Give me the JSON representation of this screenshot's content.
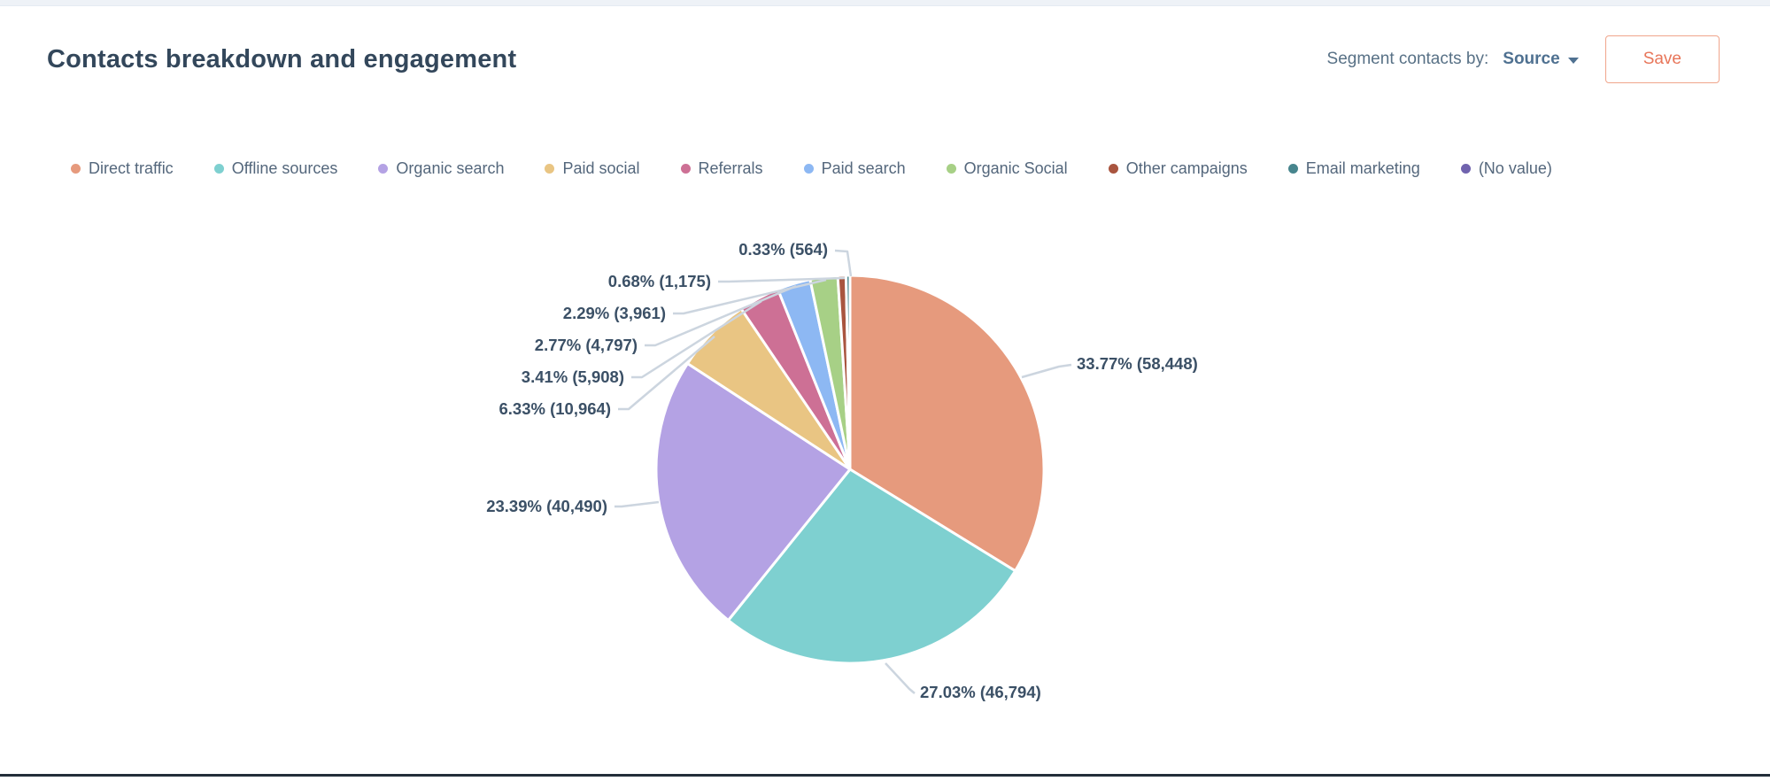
{
  "header": {
    "title": "Contacts breakdown and engagement",
    "segment_label": "Segment contacts by:",
    "segment_value": "Source",
    "save_label": "Save"
  },
  "colors": {
    "accent_button_text": "#e8765a",
    "accent_button_border": "#f0a58c",
    "title_text": "#33475b",
    "muted_text": "#587186",
    "dropdown_text": "#4f7191",
    "leader_line": "#ccd5df",
    "top_strip": "#eef2f7",
    "bottom_bar": "#232e3a"
  },
  "chart_data": {
    "type": "pie",
    "title": "Contacts breakdown and engagement",
    "legend_position": "top",
    "start_angle_deg": 0,
    "direction": "clockwise",
    "slices": [
      {
        "name": "Direct traffic",
        "percent": 33.77,
        "value": 58448,
        "label": "33.77% (58,448)",
        "color": "#e69a7d"
      },
      {
        "name": "Offline sources",
        "percent": 27.03,
        "value": 46794,
        "label": "27.03% (46,794)",
        "color": "#7ed0d0"
      },
      {
        "name": "Organic search",
        "percent": 23.39,
        "value": 40490,
        "label": "23.39% (40,490)",
        "color": "#b4a2e4"
      },
      {
        "name": "Paid social",
        "percent": 6.33,
        "value": 10964,
        "label": "6.33% (10,964)",
        "color": "#e9c583"
      },
      {
        "name": "Referrals",
        "percent": 3.41,
        "value": 5908,
        "label": "3.41% (5,908)",
        "color": "#cd7095"
      },
      {
        "name": "Paid search",
        "percent": 2.77,
        "value": 4797,
        "label": "2.77% (4,797)",
        "color": "#8db8f3"
      },
      {
        "name": "Organic Social",
        "percent": 2.29,
        "value": 3961,
        "label": "2.29% (3,961)",
        "color": "#a7d086"
      },
      {
        "name": "Other campaigns",
        "percent": 0.68,
        "value": 1175,
        "label": "0.68% (1,175)",
        "color": "#a9553f"
      },
      {
        "name": "Email marketing",
        "percent": 0.33,
        "value": 564,
        "label": "0.33% (564)",
        "color": "#47858d"
      },
      {
        "name": "(No value)",
        "percent": 0,
        "value": 0,
        "label": "",
        "color": "#7063ae"
      }
    ]
  }
}
